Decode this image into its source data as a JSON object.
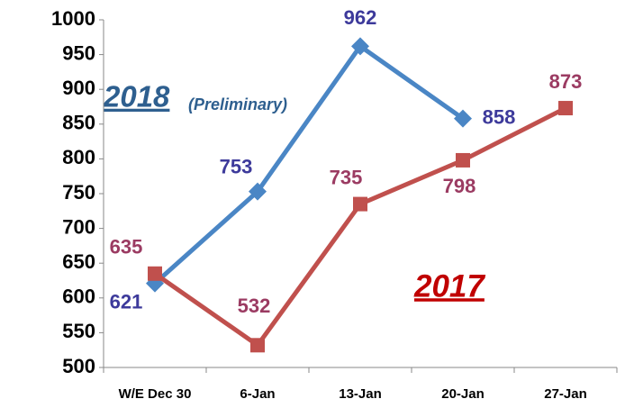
{
  "chart_data": {
    "type": "line",
    "categories": [
      "W/E Dec 30",
      "6-Jan",
      "13-Jan",
      "20-Jan",
      "27-Jan"
    ],
    "series": [
      {
        "name": "2018",
        "color": "#4a86c5",
        "label_color": "#3d3a9b",
        "marker": "diamond",
        "values": [
          621,
          753,
          962,
          858,
          null
        ]
      },
      {
        "name": "2017",
        "color": "#c0504d",
        "label_color": "#9b3b62",
        "marker": "square",
        "values": [
          635,
          532,
          735,
          798,
          873
        ]
      }
    ],
    "annotations": [
      "(Preliminary)"
    ],
    "ylim": [
      500,
      1000
    ],
    "yticks": [
      500,
      550,
      600,
      650,
      700,
      750,
      800,
      850,
      900,
      950,
      1000
    ]
  }
}
